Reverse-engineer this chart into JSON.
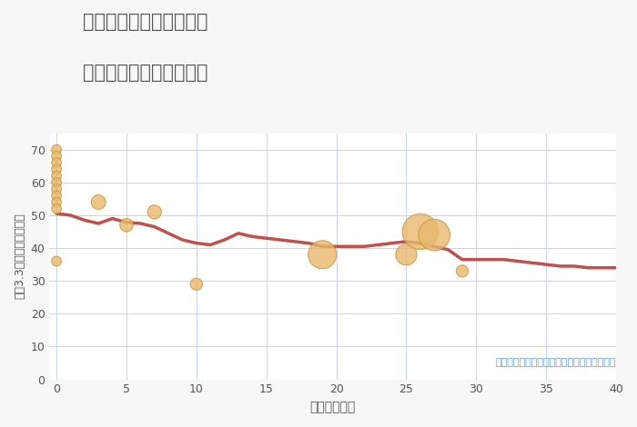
{
  "title_line1": "神奈川県秦野市下大槻の",
  "title_line2": "築年数別中古戸建て価格",
  "xlabel": "築年数（年）",
  "ylabel": "坪（3.3㎡）単価（万円）",
  "xlim": [
    -0.5,
    40
  ],
  "ylim": [
    0,
    75
  ],
  "xticks": [
    0,
    5,
    10,
    15,
    20,
    25,
    30,
    35,
    40
  ],
  "yticks": [
    0,
    10,
    20,
    30,
    40,
    50,
    60,
    70
  ],
  "line_x": [
    0,
    1,
    2,
    3,
    4,
    5,
    6,
    7,
    8,
    9,
    10,
    11,
    12,
    13,
    14,
    15,
    16,
    17,
    18,
    19,
    20,
    21,
    22,
    23,
    24,
    25,
    26,
    27,
    28,
    29,
    30,
    31,
    32,
    33,
    34,
    35,
    36,
    37,
    38,
    39,
    40
  ],
  "line_y": [
    50.5,
    50.0,
    48.5,
    47.5,
    49.0,
    47.8,
    47.5,
    46.5,
    44.5,
    42.5,
    41.5,
    41.0,
    42.5,
    44.5,
    43.5,
    43.0,
    42.5,
    42.0,
    41.5,
    40.5,
    40.5,
    40.5,
    40.5,
    41.0,
    41.5,
    42.0,
    41.5,
    40.5,
    39.5,
    36.5,
    36.5,
    36.5,
    36.5,
    36.0,
    35.5,
    35.0,
    34.5,
    34.5,
    34.0,
    34.0,
    34.0
  ],
  "scatter_x": [
    0,
    0,
    0,
    0,
    0,
    0,
    0,
    0,
    0,
    0,
    0,
    3,
    5,
    7,
    10,
    19,
    25,
    26,
    27,
    29
  ],
  "scatter_y": [
    70,
    68,
    66,
    64,
    62,
    60,
    58,
    56,
    54,
    52,
    36,
    54,
    47,
    51,
    29,
    38,
    38,
    45,
    44,
    33
  ],
  "scatter_size": [
    60,
    60,
    60,
    60,
    60,
    60,
    60,
    60,
    60,
    60,
    60,
    130,
    110,
    120,
    90,
    500,
    280,
    800,
    620,
    90
  ],
  "line_color": "#c0504d",
  "scatter_color": "#e8b86d",
  "scatter_edge_color": "#c9973a",
  "annotation_text": "円の大きさは、取引のあった物件面積を示す",
  "annotation_color": "#5b9bd5",
  "bg_color": "#f7f7f7",
  "plot_bg_color": "#ffffff",
  "grid_color": "#c8d4e8",
  "title_color": "#555555",
  "axis_label_color": "#555555",
  "tick_label_color": "#555555"
}
